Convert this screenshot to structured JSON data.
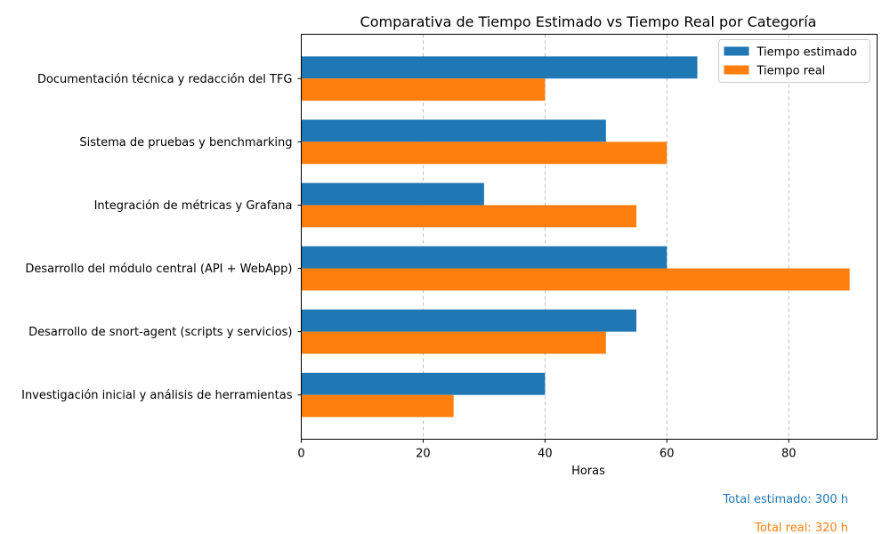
{
  "chart_data": {
    "type": "bar",
    "orientation": "horizontal",
    "title": "Comparativa de Tiempo Estimado vs Tiempo Real por Categoría",
    "xlabel": "Horas",
    "ylabel": "",
    "xlim": [
      0,
      94.5
    ],
    "xticks": [
      0,
      20,
      40,
      60,
      80
    ],
    "grid": "x-dashed",
    "legend_position": "top-right",
    "categories": [
      "Investigación inicial y análisis de herramientas",
      "Desarrollo de snort-agent (scripts y servicios)",
      "Desarrollo del módulo central (API + WebApp)",
      "Integración de métricas y Grafana",
      "Sistema de pruebas y benchmarking",
      "Documentación técnica y redacción del TFG"
    ],
    "series": [
      {
        "name": "Tiempo estimado",
        "color": "#1f77b4",
        "values": [
          40,
          55,
          60,
          30,
          50,
          65
        ]
      },
      {
        "name": "Tiempo real",
        "color": "#ff7f0e",
        "values": [
          25,
          50,
          90,
          55,
          60,
          40
        ]
      }
    ]
  },
  "totals": {
    "estimated": {
      "text": "Total estimado: 300 h",
      "color": "#1f77b4"
    },
    "real": {
      "text": "Total real: 320 h",
      "color": "#ff7f0e"
    }
  }
}
